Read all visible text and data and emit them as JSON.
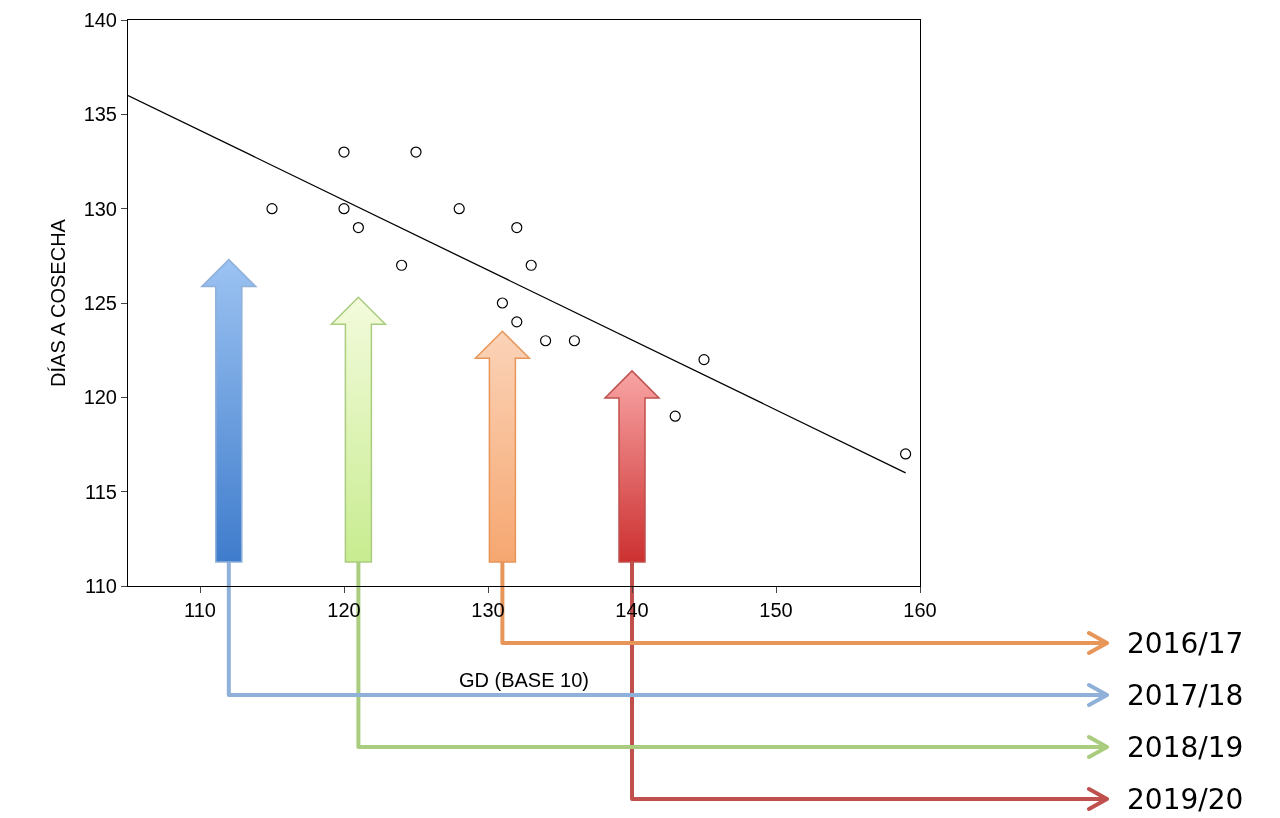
{
  "chart_data": {
    "type": "scatter",
    "xlabel": "GD (BASE 10)",
    "ylabel": "DÍAS A COSECHA",
    "xlim": [
      105,
      160
    ],
    "ylim": [
      110,
      140
    ],
    "xticks": [
      110,
      120,
      130,
      140,
      150,
      160
    ],
    "yticks": [
      110,
      115,
      120,
      125,
      130,
      135,
      140
    ],
    "grid": false,
    "series": [
      {
        "marker": "circle",
        "color": "#000000",
        "x": [
          115,
          120,
          120,
          121,
          124,
          125,
          128,
          131,
          132,
          132,
          133,
          134,
          136,
          143,
          145,
          159
        ],
        "values": [
          130,
          133,
          130,
          129,
          127,
          133,
          130,
          125,
          129,
          124,
          127,
          123,
          123,
          119,
          122,
          117
        ]
      },
      {
        "type": "line",
        "marker": "none",
        "color": "#000000",
        "x": [
          105,
          159
        ],
        "values": [
          136,
          116
        ]
      }
    ],
    "annotations": [
      "2016/17",
      "2017/18",
      "2018/19",
      "2019/20"
    ]
  }
}
